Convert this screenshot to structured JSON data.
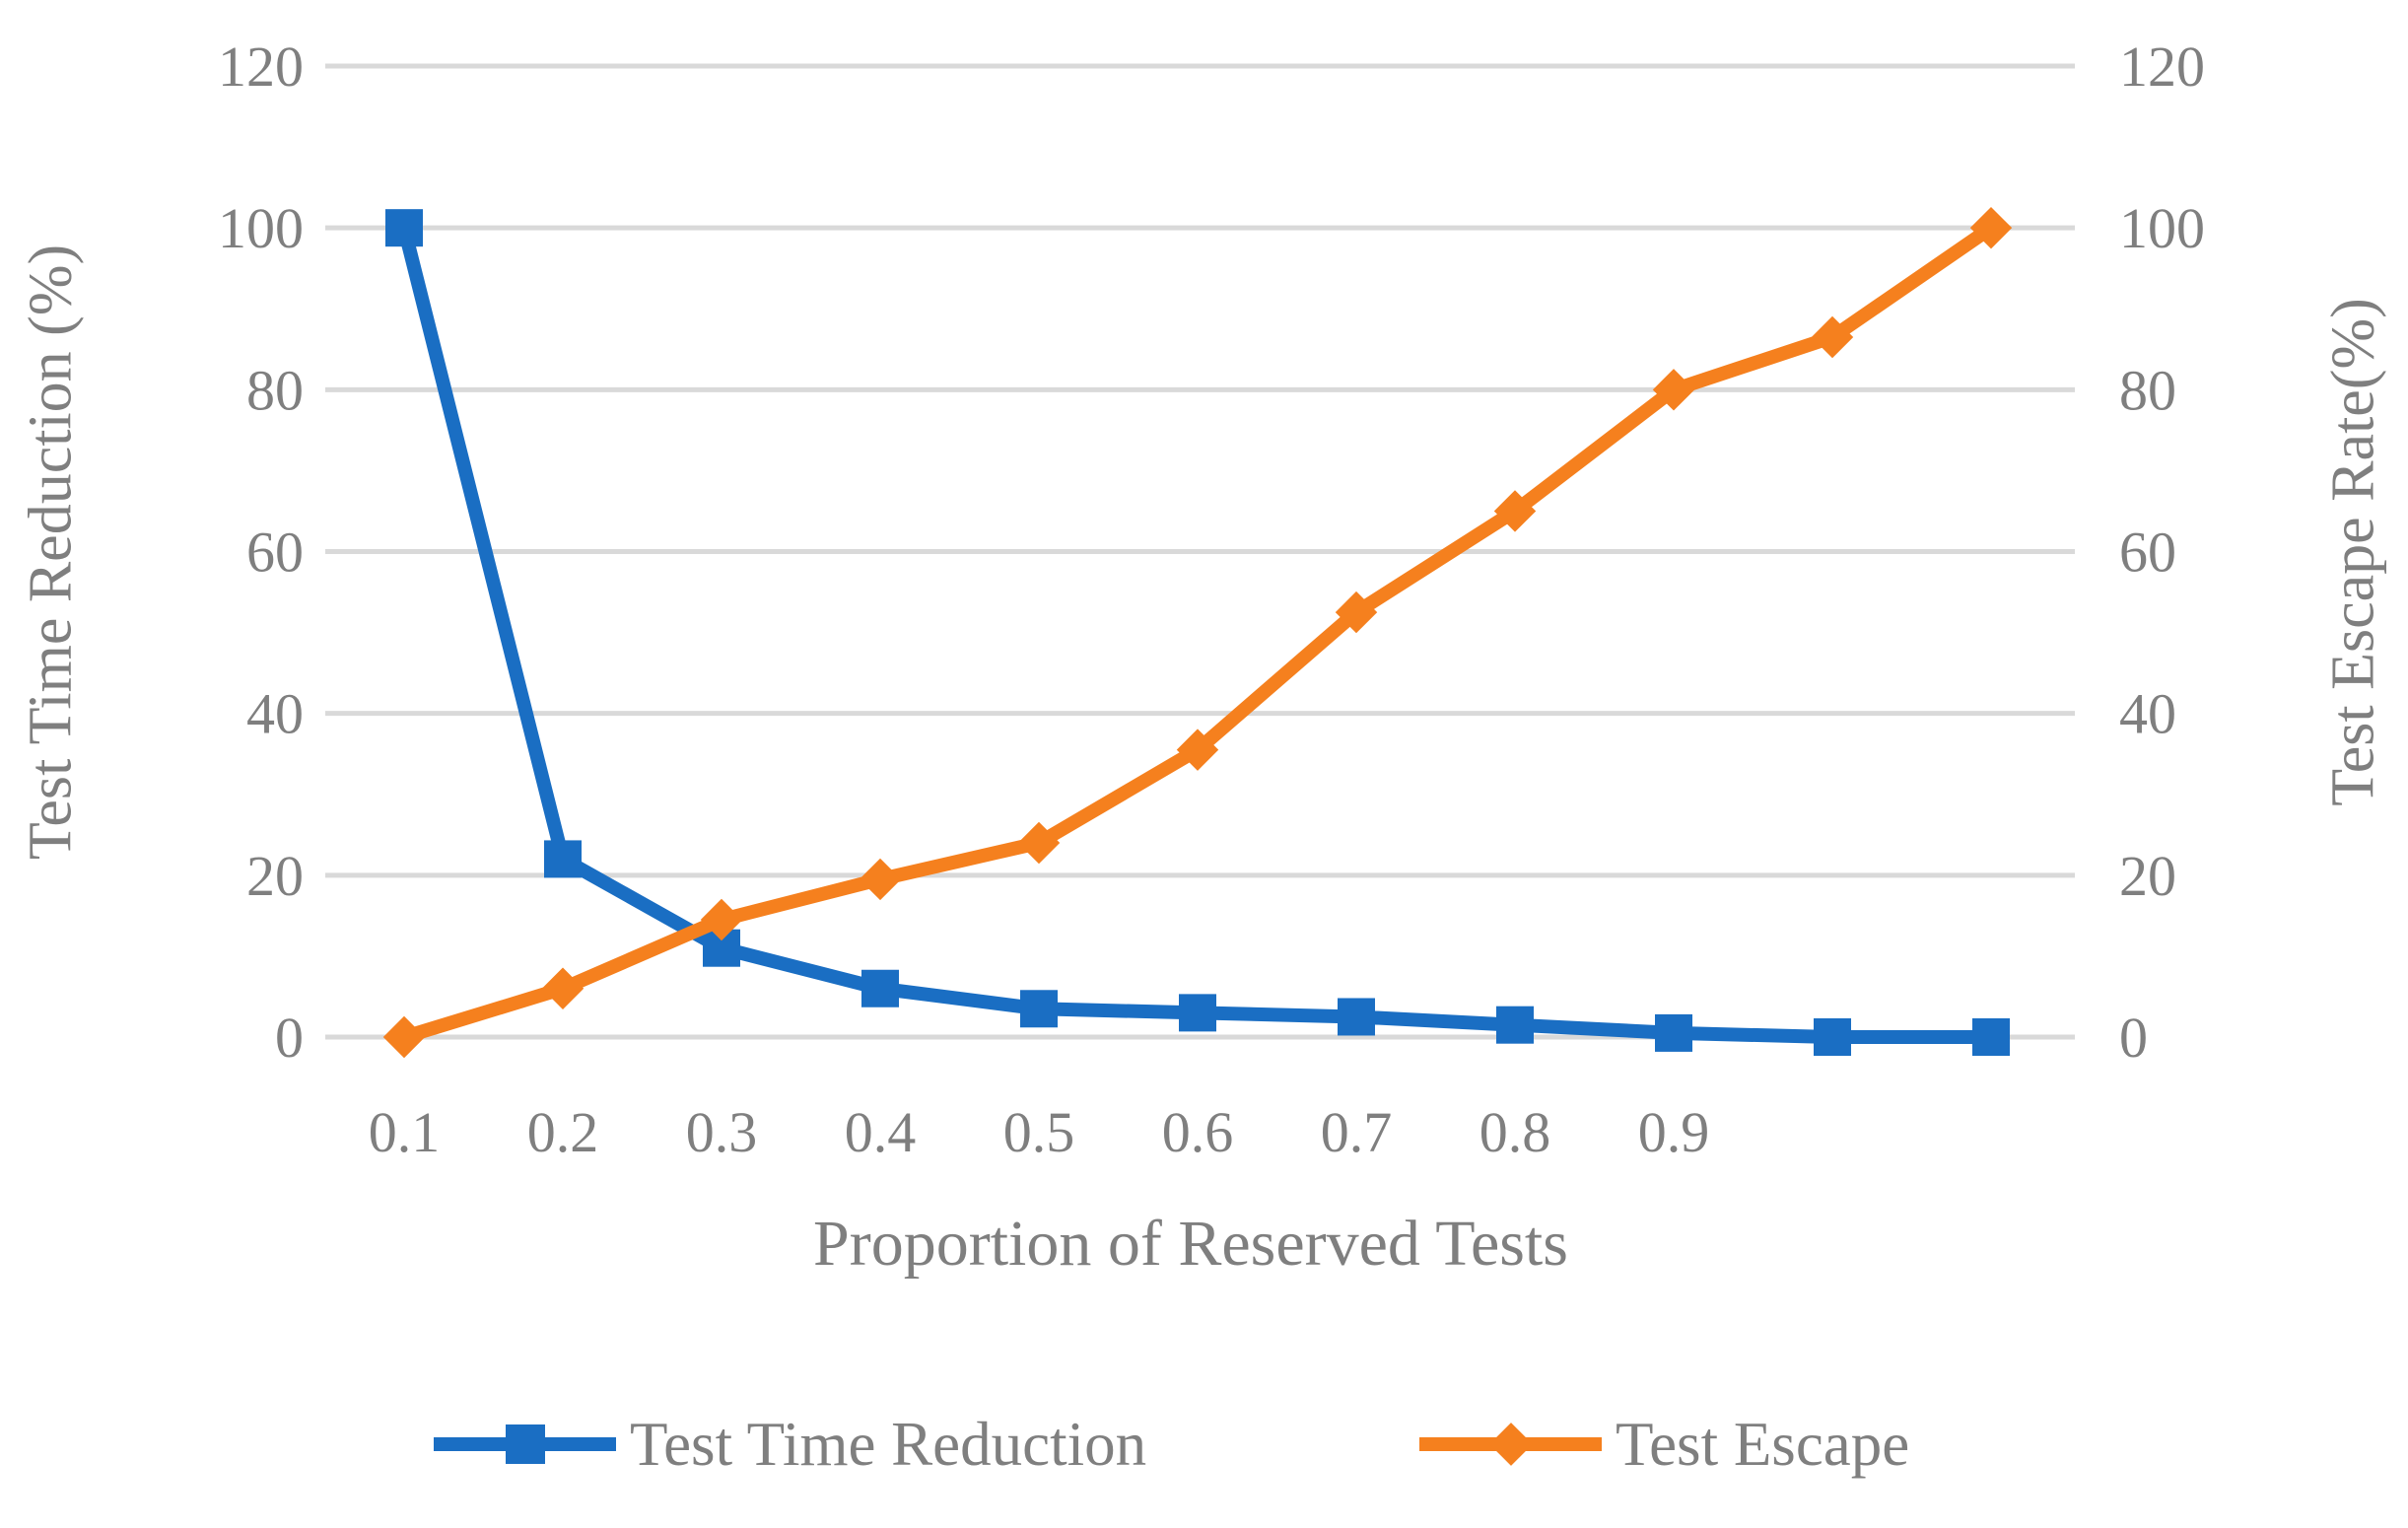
{
  "chart_data": {
    "type": "line",
    "title": "",
    "xlabel": "Proportion of Reserved Tests",
    "ylabel_left": "Test Time Reduction (%)",
    "ylabel_right": "Test Escape Rate(%)",
    "x_categories": [
      "0.1",
      "0.2",
      "0.3",
      "0.4",
      "0.5",
      "0.6",
      "0.7",
      "0.8",
      "0.9",
      "",
      ""
    ],
    "y_ticks": [
      "0",
      "20",
      "40",
      "60",
      "80",
      "100",
      "120"
    ],
    "ylim": [
      0,
      120
    ],
    "grid": "horizontal-only",
    "legend_position": "bottom",
    "series": [
      {
        "name": "Test Time Reduction",
        "axis": "left",
        "marker": "square",
        "color": "#1a6ec3",
        "values": [
          100,
          22,
          11,
          6,
          3.5,
          3,
          2.5,
          1.5,
          0.5,
          0,
          0
        ]
      },
      {
        "name": "Test Escape",
        "axis": "right",
        "marker": "diamond",
        "color": "#f5801e",
        "values": [
          0,
          6,
          14.5,
          19.5,
          24,
          35.5,
          52.5,
          65,
          80,
          86.5,
          100
        ]
      }
    ]
  },
  "colors": {
    "blue_series": "#1a6ec3",
    "orange_series": "#f5801e",
    "gridline": "#d9d9d9",
    "axis_text": "#7f7f7f",
    "background": "#ffffff"
  }
}
